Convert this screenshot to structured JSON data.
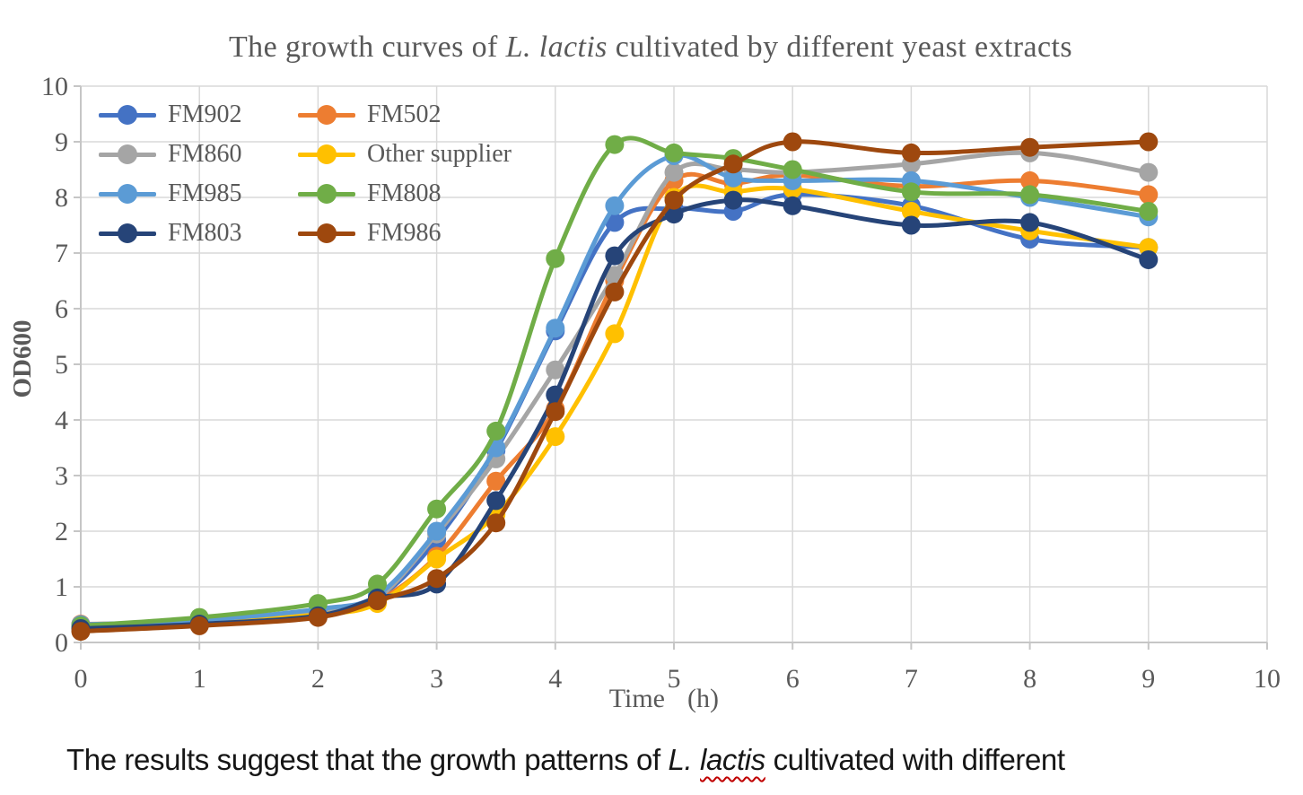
{
  "chart": {
    "title": {
      "prefix": "The growth curves of ",
      "italic": "L. lactis",
      "suffix": " cultivated by different yeast extracts"
    },
    "x_axis": {
      "title_parts": [
        "Time",
        "(h)"
      ],
      "ticks": [
        0,
        1,
        2,
        3,
        4,
        5,
        6,
        7,
        8,
        9,
        10
      ],
      "min": 0,
      "max": 10
    },
    "y_axis": {
      "title": "OD600",
      "ticks": [
        0,
        1,
        2,
        3,
        4,
        5,
        6,
        7,
        8,
        9,
        10
      ],
      "min": 0,
      "max": 10
    },
    "colors": {
      "gridline": "#D9D9D9",
      "axis_line": "#C6C6C6",
      "tick_text": "#595959",
      "title_text": "#595959"
    }
  },
  "chart_data": {
    "type": "line",
    "smooth": true,
    "marker": "circle",
    "grid": true,
    "legend_position": "top-left",
    "title": "The growth curves of L. lactis cultivated by different yeast extracts",
    "xlabel": "Time (h)",
    "ylabel": "OD600",
    "xlim": [
      0,
      10
    ],
    "ylim": [
      0,
      10
    ],
    "x": [
      0,
      1,
      2,
      2.5,
      3,
      3.5,
      4,
      4.5,
      5,
      5.5,
      6,
      7,
      8,
      9
    ],
    "series": [
      {
        "name": "FM902",
        "color": "#4472C4",
        "values": [
          0.3,
          0.38,
          0.58,
          0.8,
          1.85,
          3.45,
          5.6,
          7.55,
          7.8,
          7.75,
          8.05,
          7.85,
          7.25,
          7.1
        ]
      },
      {
        "name": "FM502",
        "color": "#ED7D31",
        "values": [
          0.33,
          0.37,
          0.52,
          0.75,
          1.55,
          2.9,
          4.2,
          6.5,
          8.3,
          8.25,
          8.4,
          8.2,
          8.3,
          8.05
        ]
      },
      {
        "name": "FM860",
        "color": "#A5A5A5",
        "values": [
          0.28,
          0.37,
          0.55,
          0.8,
          1.95,
          3.3,
          4.9,
          6.6,
          8.45,
          8.5,
          8.45,
          8.6,
          8.8,
          8.45
        ]
      },
      {
        "name": "Other supplier",
        "color": "#FFC000",
        "values": [
          0.28,
          0.36,
          0.5,
          0.7,
          1.5,
          2.3,
          3.7,
          5.55,
          8.0,
          8.1,
          8.15,
          7.75,
          7.4,
          7.1
        ]
      },
      {
        "name": "FM985",
        "color": "#5B9BD5",
        "values": [
          0.32,
          0.4,
          0.6,
          0.85,
          2.0,
          3.5,
          5.65,
          7.85,
          8.75,
          8.35,
          8.3,
          8.3,
          8.0,
          7.65
        ]
      },
      {
        "name": "FM808",
        "color": "#70AD47",
        "values": [
          0.3,
          0.45,
          0.7,
          1.05,
          2.4,
          3.8,
          6.9,
          8.95,
          8.8,
          8.7,
          8.5,
          8.1,
          8.05,
          7.75
        ]
      },
      {
        "name": "FM803",
        "color": "#264478",
        "values": [
          0.25,
          0.33,
          0.48,
          0.8,
          1.05,
          2.55,
          4.45,
          6.95,
          7.7,
          7.95,
          7.85,
          7.5,
          7.55,
          6.88
        ]
      },
      {
        "name": "FM986",
        "color": "#9E480E",
        "values": [
          0.2,
          0.3,
          0.45,
          0.75,
          1.15,
          2.15,
          4.15,
          6.3,
          7.95,
          8.6,
          9.0,
          8.8,
          8.9,
          9.0
        ]
      }
    ]
  },
  "legend": {
    "columns": 2,
    "items": [
      {
        "label": "FM902"
      },
      {
        "label": "FM502"
      },
      {
        "label": "FM860"
      },
      {
        "label": "Other supplier"
      },
      {
        "label": "FM985"
      },
      {
        "label": "FM808"
      },
      {
        "label": "FM803"
      },
      {
        "label": "FM986"
      }
    ]
  },
  "caption": {
    "prefix": "The results suggest that the growth patterns of ",
    "italic_l": "L. ",
    "italic_word": "lactis",
    "suffix": " cultivated with different",
    "spellcheck_color": "#C00000"
  }
}
